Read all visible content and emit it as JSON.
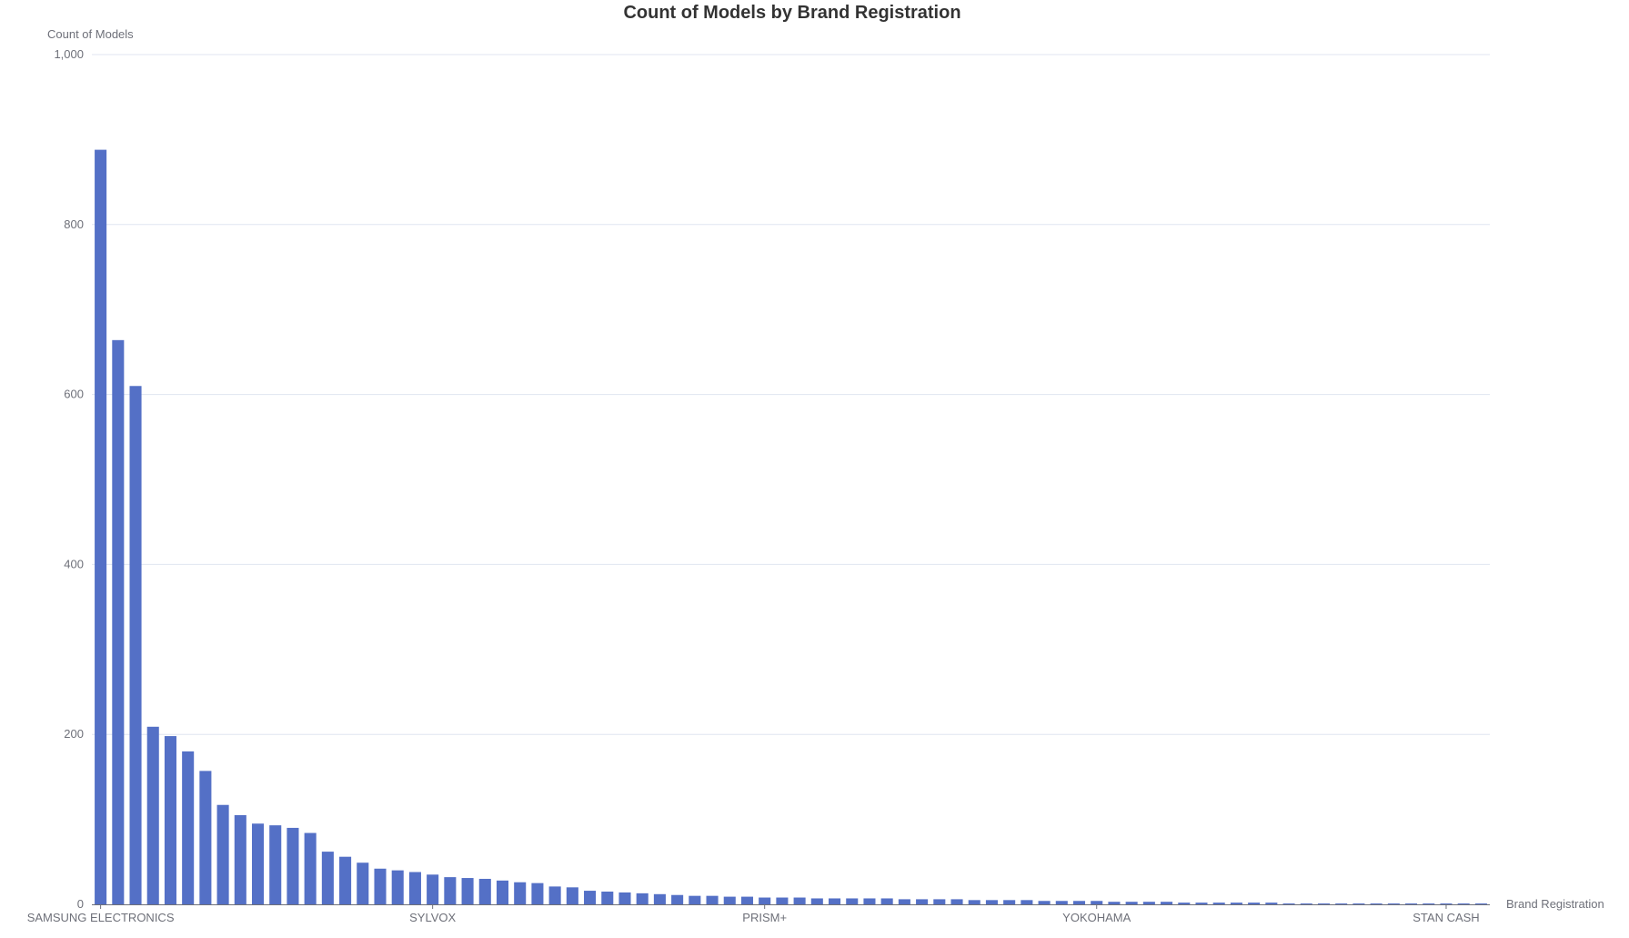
{
  "chart_data": {
    "type": "bar",
    "title": "Count of Models by Brand Registration",
    "xlabel": "Brand Registration",
    "ylabel": "Count of Models",
    "ylim": [
      0,
      1000
    ],
    "yticks": [
      0,
      200,
      400,
      600,
      800,
      1000
    ],
    "ytick_labels": [
      "0",
      "200",
      "400",
      "600",
      "800",
      "1,000"
    ],
    "grid": true,
    "legend": "none",
    "bar_color": "#5470c6",
    "category_count": 80,
    "labeled_categories": [
      {
        "index": 0,
        "label": "SAMSUNG ELECTRONICS"
      },
      {
        "index": 19,
        "label": "SYLVOX"
      },
      {
        "index": 38,
        "label": "PRISM+"
      },
      {
        "index": 57,
        "label": "YOKOHAMA"
      },
      {
        "index": 77,
        "label": "STAN CASH"
      }
    ],
    "values": [
      888,
      664,
      610,
      209,
      198,
      180,
      157,
      117,
      105,
      95,
      93,
      90,
      84,
      62,
      56,
      49,
      42,
      40,
      38,
      35,
      32,
      31,
      30,
      28,
      26,
      25,
      21,
      20,
      16,
      15,
      14,
      13,
      12,
      11,
      10,
      10,
      9,
      9,
      8,
      8,
      8,
      7,
      7,
      7,
      7,
      7,
      6,
      6,
      6,
      6,
      5,
      5,
      5,
      5,
      4,
      4,
      4,
      4,
      3,
      3,
      3,
      3,
      2,
      2,
      2,
      2,
      2,
      2,
      1,
      1,
      1,
      1,
      1,
      1,
      1,
      1,
      1,
      1,
      1,
      1
    ]
  }
}
